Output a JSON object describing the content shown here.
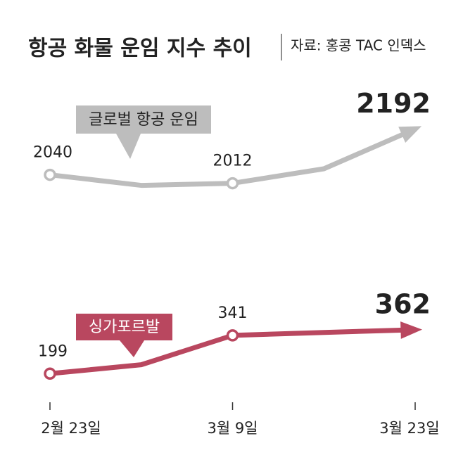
{
  "chart_data": [
    {
      "type": "line",
      "title": "항공 화물 운임 지수 추이",
      "source": "자료: 홍콩 TAC 인덱스",
      "ylim": [
        1990,
        2200
      ],
      "series": [
        {
          "name": "글로벌 항공 운임",
          "color": "#bdbdbd",
          "values": [
            2040,
            2005,
            2012,
            2060,
            2192
          ]
        }
      ]
    },
    {
      "type": "line",
      "categories": [
        "2월 23일",
        null,
        "3월 9일",
        null,
        "3월 23일"
      ],
      "ylim": [
        150,
        380
      ],
      "series": [
        {
          "name": "싱가포르발",
          "color": "#b9475f",
          "values": [
            199,
            232,
            341,
            352,
            362
          ]
        }
      ]
    }
  ]
}
